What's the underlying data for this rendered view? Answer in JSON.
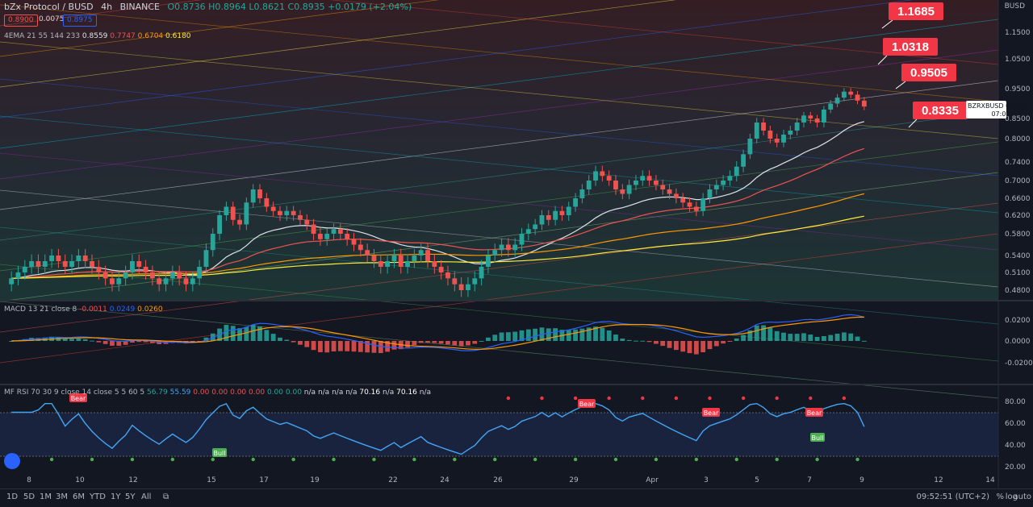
{
  "header": {
    "symbol_title": "bZx Protocol / BUSD",
    "interval": "4h",
    "exchange": "BINANCE",
    "ohlc": "O0.8736 H0.8964 L0.8621 C0.8935 +0.0179 (+2.04%)",
    "sell_price": "0.8900",
    "spread": "0.0075",
    "buy_price": "0.8975",
    "ema_label": "4EMA 21 55 144 233",
    "ema_values": [
      "0.8559",
      "0.7747",
      "0.6704",
      "0.6180"
    ],
    "axis_currency": "BUSD"
  },
  "colors": {
    "up": "#26a69a",
    "down": "#ef5350",
    "ema21": "#e0e3eb",
    "ema55": "#ef5350",
    "ema144": "#ff9800",
    "ema233": "#ffeb3b",
    "macd": "#2962ff",
    "signal": "#ff9800",
    "rsi": "#42a5f5",
    "callout": "#f23645"
  },
  "callouts": [
    "1.1685",
    "1.0318",
    "0.9505",
    "0.8335"
  ],
  "last_price_tag": {
    "symbol": "BZRXBUSD",
    "price": "0.8935",
    "countdown": "07:09"
  },
  "macd_panel": {
    "label": "MACD 13 21 close 8",
    "values": [
      "-0.0011",
      "0.0249",
      "0.0260"
    ],
    "ticks": [
      "0.0200",
      "0.0000",
      "-0.0200"
    ]
  },
  "rsi_panel": {
    "label": "MF RSI 70 30 9 close 14 close 5 5 60 5",
    "values": [
      "56.79",
      "55.59",
      "0.00",
      "0.00",
      "0.00",
      "0.00",
      "0.00",
      "0.00",
      "n/a",
      "n/a",
      "n/a",
      "n/a",
      "70.16",
      "n/a",
      "70.16",
      "n/a"
    ],
    "ticks": [
      "80.00",
      "60.00",
      "40.00",
      "20.00"
    ],
    "signals": [
      "Bear",
      "Bear",
      "Bear",
      "Bear",
      "Bull",
      "Bull"
    ]
  },
  "chart_data": {
    "type": "candlestick",
    "title": "bZx Protocol / BUSD",
    "ylabel": "BUSD",
    "y_ticks": [
      "1.1500",
      "1.0500",
      "0.9500",
      "0.8500",
      "0.8000",
      "0.7400",
      "0.7000",
      "0.6600",
      "0.6200",
      "0.5800",
      "0.5400",
      "0.5100",
      "0.4800"
    ],
    "x_ticks": [
      "8",
      "10",
      "12",
      "15",
      "17",
      "19",
      "22",
      "24",
      "26",
      "29",
      "Apr",
      "3",
      "5",
      "7",
      "9",
      "12",
      "14"
    ],
    "ylim": [
      0.46,
      1.2
    ],
    "close_series": [
      0.5,
      0.51,
      0.52,
      0.53,
      0.52,
      0.53,
      0.54,
      0.53,
      0.52,
      0.53,
      0.54,
      0.53,
      0.52,
      0.51,
      0.5,
      0.49,
      0.5,
      0.51,
      0.53,
      0.52,
      0.51,
      0.5,
      0.49,
      0.5,
      0.51,
      0.5,
      0.49,
      0.5,
      0.52,
      0.55,
      0.58,
      0.62,
      0.64,
      0.61,
      0.6,
      0.65,
      0.68,
      0.66,
      0.64,
      0.63,
      0.62,
      0.63,
      0.62,
      0.61,
      0.6,
      0.58,
      0.57,
      0.58,
      0.59,
      0.58,
      0.57,
      0.56,
      0.55,
      0.54,
      0.53,
      0.52,
      0.53,
      0.54,
      0.52,
      0.53,
      0.54,
      0.55,
      0.53,
      0.52,
      0.51,
      0.5,
      0.49,
      0.48,
      0.49,
      0.5,
      0.52,
      0.54,
      0.55,
      0.56,
      0.55,
      0.56,
      0.58,
      0.59,
      0.6,
      0.62,
      0.61,
      0.63,
      0.62,
      0.64,
      0.66,
      0.68,
      0.7,
      0.72,
      0.71,
      0.7,
      0.68,
      0.67,
      0.69,
      0.7,
      0.71,
      0.7,
      0.69,
      0.68,
      0.67,
      0.66,
      0.65,
      0.64,
      0.63,
      0.66,
      0.68,
      0.69,
      0.7,
      0.71,
      0.73,
      0.76,
      0.8,
      0.84,
      0.82,
      0.8,
      0.79,
      0.81,
      0.82,
      0.84,
      0.86,
      0.85,
      0.84,
      0.88,
      0.9,
      0.92,
      0.94,
      0.93,
      0.91,
      0.89
    ],
    "ema": {
      "21": 0.8559,
      "55": 0.7747,
      "144": 0.6704,
      "233": 0.618
    }
  }
}
